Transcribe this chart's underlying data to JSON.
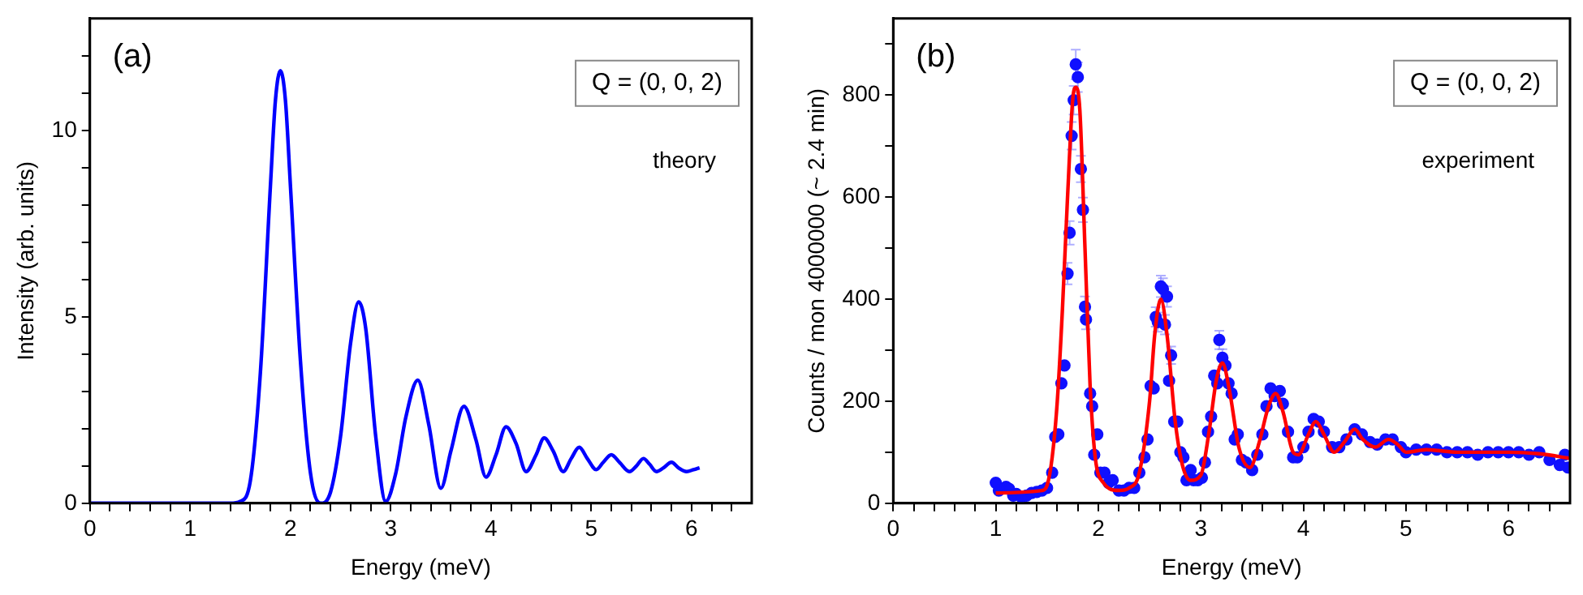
{
  "chart_data": [
    {
      "type": "line",
      "xlabel": "Energy (meV)",
      "ylabel": "Intensity (arb. units)",
      "annotations": [
        "(a)",
        "Q = (0, 0, 2)",
        "theory"
      ],
      "xlim": [
        0,
        6.6
      ],
      "xticks": [
        0,
        {
          "value": 0.2,
          "label": null
        },
        {
          "value": 0.4,
          "label": null
        },
        {
          "value": 0.6,
          "label": null
        },
        {
          "value": 0.8,
          "label": null
        },
        1,
        {
          "value": 1.2,
          "label": null
        },
        {
          "value": 1.4,
          "label": null
        },
        {
          "value": 1.6,
          "label": null
        },
        {
          "value": 1.8,
          "label": null
        },
        2,
        {
          "value": 2.2,
          "label": null
        },
        {
          "value": 2.4,
          "label": null
        },
        {
          "value": 2.6,
          "label": null
        },
        {
          "value": 2.8,
          "label": null
        },
        3,
        {
          "value": 3.2,
          "label": null
        },
        {
          "value": 3.4,
          "label": null
        },
        {
          "value": 3.6,
          "label": null
        },
        {
          "value": 3.8,
          "label": null
        },
        4,
        {
          "value": 4.2,
          "label": null
        },
        {
          "value": 4.4,
          "label": null
        },
        {
          "value": 4.6,
          "label": null
        },
        {
          "value": 4.8,
          "label": null
        },
        5,
        {
          "value": 5.2,
          "label": null
        },
        {
          "value": 5.4,
          "label": null
        },
        {
          "value": 5.6,
          "label": null
        },
        {
          "value": 5.8,
          "label": null
        },
        6,
        {
          "value": 6.2,
          "label": null
        },
        {
          "value": 6.4,
          "label": null
        }
      ],
      "ylim": [
        0,
        13
      ],
      "yticks": [
        0,
        {
          "value": 1,
          "label": null
        },
        {
          "value": 2,
          "label": null
        },
        {
          "value": 3,
          "label": null
        },
        {
          "value": 4,
          "label": null
        },
        5,
        {
          "value": 6,
          "label": null
        },
        {
          "value": 7,
          "label": null
        },
        {
          "value": 8,
          "label": null
        },
        {
          "value": 9,
          "label": null
        },
        10,
        {
          "value": 11,
          "label": null
        },
        {
          "value": 12,
          "label": null
        }
      ],
      "grid": false,
      "legend": false,
      "series": [
        {
          "color": "#0000ff",
          "x": [
            0,
            0.5,
            1,
            1.4,
            1.5,
            1.6,
            1.7,
            1.8,
            1.85,
            1.9,
            1.95,
            2.0,
            2.1,
            2.2,
            2.3,
            2.4,
            2.5,
            2.6,
            2.68,
            2.75,
            2.85,
            2.95,
            3.05,
            3.15,
            3.27,
            3.38,
            3.5,
            3.6,
            3.73,
            3.85,
            3.95,
            4.05,
            4.15,
            4.25,
            4.35,
            4.45,
            4.53,
            4.62,
            4.72,
            4.8,
            4.88,
            4.96,
            5.05,
            5.12,
            5.2,
            5.28,
            5.38,
            5.45,
            5.52,
            5.58,
            5.65,
            5.72,
            5.8,
            5.87,
            5.95,
            6.02,
            6.08
          ],
          "values": [
            0,
            0,
            0,
            0,
            0.05,
            0.6,
            3.5,
            8.5,
            10.8,
            11.6,
            10.8,
            8.5,
            3.8,
            0.8,
            0,
            0.3,
            1.8,
            4.3,
            5.4,
            4.7,
            1.8,
            0.05,
            0.8,
            2.3,
            3.3,
            2.1,
            0.4,
            1.4,
            2.6,
            1.7,
            0.7,
            1.3,
            2.05,
            1.6,
            0.85,
            1.3,
            1.75,
            1.4,
            0.85,
            1.2,
            1.5,
            1.2,
            0.9,
            1.1,
            1.3,
            1.1,
            0.85,
            1.0,
            1.2,
            1.05,
            0.85,
            0.95,
            1.1,
            0.95,
            0.85,
            0.9,
            0.95
          ]
        }
      ]
    },
    {
      "type": "scatter",
      "xlabel": "Energy (meV)",
      "ylabel": "Counts / mon 4000000 (~ 2.4 min)",
      "annotations": [
        "(b)",
        "Q = (0, 0, 2)",
        "experiment"
      ],
      "xlim": [
        0,
        6.6
      ],
      "xticks": [
        0,
        {
          "value": 0.2,
          "label": null
        },
        {
          "value": 0.4,
          "label": null
        },
        {
          "value": 0.6,
          "label": null
        },
        {
          "value": 0.8,
          "label": null
        },
        1,
        {
          "value": 1.2,
          "label": null
        },
        {
          "value": 1.4,
          "label": null
        },
        {
          "value": 1.6,
          "label": null
        },
        {
          "value": 1.8,
          "label": null
        },
        2,
        {
          "value": 2.2,
          "label": null
        },
        {
          "value": 2.4,
          "label": null
        },
        {
          "value": 2.6,
          "label": null
        },
        {
          "value": 2.8,
          "label": null
        },
        3,
        {
          "value": 3.2,
          "label": null
        },
        {
          "value": 3.4,
          "label": null
        },
        {
          "value": 3.6,
          "label": null
        },
        {
          "value": 3.8,
          "label": null
        },
        4,
        {
          "value": 4.2,
          "label": null
        },
        {
          "value": 4.4,
          "label": null
        },
        {
          "value": 4.6,
          "label": null
        },
        {
          "value": 4.8,
          "label": null
        },
        5,
        {
          "value": 5.2,
          "label": null
        },
        {
          "value": 5.4,
          "label": null
        },
        {
          "value": 5.6,
          "label": null
        },
        {
          "value": 5.8,
          "label": null
        },
        6,
        {
          "value": 6.2,
          "label": null
        },
        {
          "value": 6.4,
          "label": null
        }
      ],
      "ylim": [
        0,
        950
      ],
      "yticks": [
        0,
        {
          "value": 100,
          "label": null
        },
        200,
        {
          "value": 300,
          "label": null
        },
        400,
        {
          "value": 500,
          "label": null
        },
        600,
        {
          "value": 700,
          "label": null
        },
        800,
        {
          "value": 900,
          "label": null
        }
      ],
      "grid": false,
      "legend": false,
      "series": [
        {
          "marker": "circle",
          "color": "#1010ff",
          "x": [
            1.0,
            1.03,
            1.1,
            1.13,
            1.17,
            1.2,
            1.25,
            1.3,
            1.35,
            1.4,
            1.45,
            1.5,
            1.55,
            1.58,
            1.61,
            1.64,
            1.67,
            1.7,
            1.72,
            1.74,
            1.76,
            1.78,
            1.8,
            1.83,
            1.85,
            1.87,
            1.88,
            1.92,
            1.94,
            1.96,
            1.99,
            2.02,
            2.06,
            2.1,
            2.14,
            2.2,
            2.25,
            2.3,
            2.35,
            2.4,
            2.45,
            2.48,
            2.51,
            2.54,
            2.56,
            2.58,
            2.61,
            2.63,
            2.65,
            2.67,
            2.69,
            2.71,
            2.74,
            2.77,
            2.8,
            2.83,
            2.86,
            2.9,
            2.93,
            2.97,
            3.01,
            3.04,
            3.07,
            3.1,
            3.13,
            3.16,
            3.18,
            3.21,
            3.24,
            3.27,
            3.3,
            3.33,
            3.36,
            3.4,
            3.44,
            3.5,
            3.55,
            3.6,
            3.64,
            3.68,
            3.72,
            3.77,
            3.8,
            3.85,
            3.9,
            3.94,
            4.0,
            4.05,
            4.1,
            4.15,
            4.2,
            4.28,
            4.35,
            4.42,
            4.5,
            4.57,
            4.65,
            4.72,
            4.8,
            4.87,
            4.95,
            5.0,
            5.1,
            5.2,
            5.3,
            5.4,
            5.5,
            5.6,
            5.7,
            5.8,
            5.9,
            6.0,
            6.1,
            6.2,
            6.3,
            6.4,
            6.5,
            6.55,
            6.58
          ],
          "values": [
            40,
            25,
            32,
            28,
            15,
            18,
            12,
            15,
            20,
            22,
            25,
            30,
            60,
            130,
            135,
            235,
            270,
            450,
            530,
            720,
            790,
            860,
            835,
            655,
            575,
            385,
            360,
            215,
            190,
            95,
            135,
            60,
            60,
            40,
            45,
            25,
            25,
            30,
            30,
            60,
            90,
            125,
            230,
            225,
            365,
            355,
            425,
            420,
            350,
            405,
            240,
            290,
            160,
            160,
            100,
            90,
            45,
            65,
            45,
            45,
            50,
            80,
            140,
            170,
            250,
            235,
            320,
            285,
            270,
            235,
            215,
            125,
            135,
            85,
            80,
            65,
            95,
            135,
            190,
            225,
            210,
            220,
            195,
            140,
            90,
            90,
            110,
            140,
            165,
            160,
            140,
            110,
            110,
            125,
            145,
            135,
            120,
            115,
            125,
            125,
            110,
            100,
            105,
            105,
            105,
            100,
            100,
            100,
            95,
            100,
            100,
            100,
            100,
            95,
            100,
            85,
            75,
            95,
            70
          ],
          "errors": [
            null,
            null,
            null,
            null,
            null,
            null,
            null,
            null,
            null,
            null,
            null,
            null,
            null,
            null,
            null,
            null,
            null,
            21,
            23,
            27,
            28,
            29,
            29,
            26,
            24,
            20,
            19,
            null,
            null,
            null,
            null,
            null,
            null,
            null,
            null,
            null,
            null,
            null,
            null,
            null,
            null,
            null,
            null,
            null,
            19,
            19,
            21,
            21,
            19,
            20,
            null,
            17,
            null,
            null,
            null,
            null,
            null,
            null,
            null,
            null,
            null,
            null,
            null,
            null,
            null,
            null,
            18,
            17,
            null,
            null,
            null,
            null,
            null,
            null,
            null,
            null,
            null,
            null,
            null,
            null,
            null,
            null,
            null,
            null,
            null,
            null,
            null,
            null,
            null,
            null,
            null,
            null,
            null,
            null,
            null,
            null,
            null,
            null,
            null,
            null,
            null,
            null,
            null,
            null,
            null,
            null,
            null,
            null,
            null,
            null,
            null,
            null,
            null,
            null,
            null,
            null,
            null,
            null,
            null
          ]
        },
        {
          "type": "line",
          "color": "#ff0000",
          "x": [
            1.0,
            1.45,
            1.5,
            1.55,
            1.6,
            1.65,
            1.7,
            1.75,
            1.78,
            1.82,
            1.87,
            1.92,
            1.97,
            2.05,
            2.2,
            2.3,
            2.4,
            2.5,
            2.55,
            2.61,
            2.67,
            2.75,
            2.82,
            2.9,
            3.0,
            3.08,
            3.15,
            3.21,
            3.28,
            3.37,
            3.48,
            3.57,
            3.66,
            3.73,
            3.8,
            3.9,
            3.95,
            4.05,
            4.12,
            4.2,
            4.3,
            4.4,
            4.5,
            4.58,
            4.7,
            4.83,
            4.92,
            5.0,
            5.2,
            5.5,
            6.0,
            6.3,
            6.6
          ],
          "values": [
            20,
            25,
            35,
            90,
            200,
            380,
            600,
            790,
            815,
            770,
            500,
            230,
            90,
            40,
            25,
            30,
            60,
            200,
            330,
            400,
            330,
            160,
            75,
            45,
            55,
            140,
            240,
            275,
            220,
            110,
            70,
            120,
            190,
            215,
            180,
            100,
            95,
            135,
            160,
            135,
            100,
            120,
            145,
            125,
            110,
            125,
            115,
            100,
            105,
            100,
            100,
            97,
            88
          ]
        }
      ]
    }
  ]
}
